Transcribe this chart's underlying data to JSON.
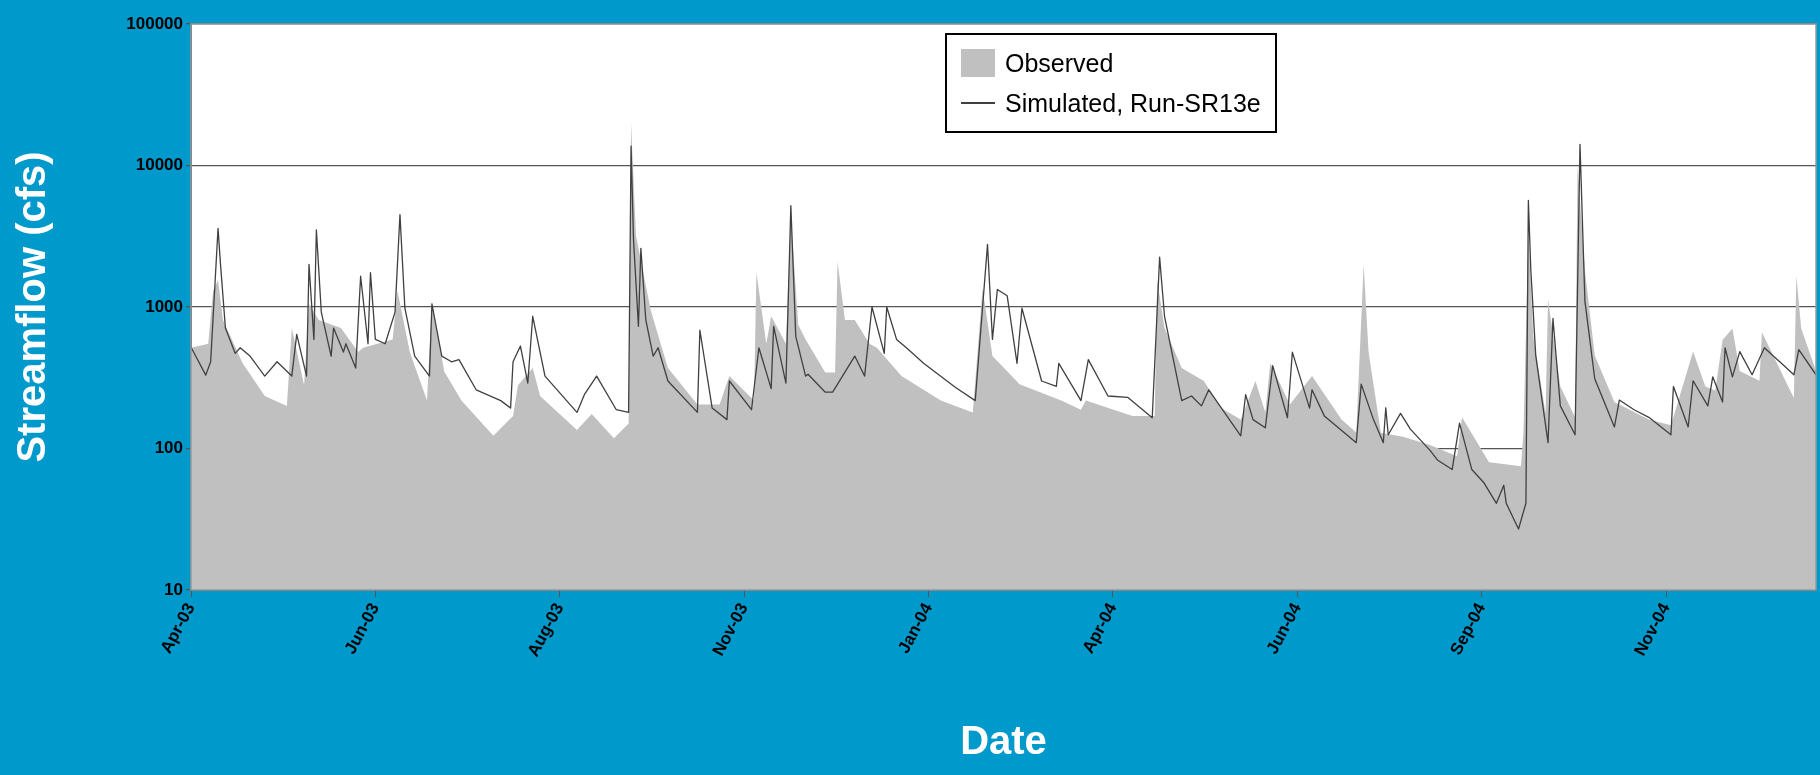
{
  "chart_data": {
    "type": "area",
    "xlabel": "Date",
    "ylabel": "Streamflow (cfs)",
    "xlim": [
      "2003-04-01",
      "2005-01-21"
    ],
    "xticks": [
      {
        "value": "2003-04-01",
        "label": "Apr-03"
      },
      {
        "value": "2003-06-15",
        "label": "Jun-03"
      },
      {
        "value": "2003-08-29",
        "label": "Aug-03"
      },
      {
        "value": "2003-11-12",
        "label": "Nov-03"
      },
      {
        "value": "2004-01-26",
        "label": "Jan-04"
      },
      {
        "value": "2004-04-10",
        "label": "Apr-04"
      },
      {
        "value": "2004-06-24",
        "label": "Jun-04"
      },
      {
        "value": "2004-09-07",
        "label": "Sep-04"
      },
      {
        "value": "2004-11-21",
        "label": "Nov-04"
      }
    ],
    "ylim": [
      10,
      100000
    ],
    "yticks": [
      10,
      100,
      1000,
      10000,
      100000
    ],
    "log": "y",
    "grid": "y",
    "legend": "top",
    "series": [
      {
        "name": "Observed",
        "type": "area",
        "color": "#c0c0c0",
        "x": [
          "2003-04-01",
          "2003-04-08",
          "2003-04-10",
          "2003-04-12",
          "2003-04-14",
          "2003-04-22",
          "2003-05-01",
          "2003-05-10",
          "2003-05-12",
          "2003-05-17",
          "2003-05-19",
          "2003-05-23",
          "2003-06-01",
          "2003-06-08",
          "2003-06-10",
          "2003-06-22",
          "2003-06-24",
          "2003-06-29",
          "2003-07-06",
          "2003-07-08",
          "2003-07-13",
          "2003-07-20",
          "2003-08-02",
          "2003-08-10",
          "2003-08-12",
          "2003-08-18",
          "2003-08-21",
          "2003-09-05",
          "2003-09-11",
          "2003-09-20",
          "2003-09-26",
          "2003-09-27",
          "2003-09-29",
          "2003-10-05",
          "2003-10-12",
          "2003-10-24",
          "2003-11-02",
          "2003-11-06",
          "2003-11-16",
          "2003-11-17",
          "2003-11-21",
          "2003-11-23",
          "2003-11-29",
          "2003-12-01",
          "2003-12-04",
          "2003-12-07",
          "2003-12-15",
          "2003-12-19",
          "2003-12-20",
          "2003-12-23",
          "2003-12-27",
          "2004-01-02",
          "2004-01-05",
          "2004-01-15",
          "2004-01-31",
          "2004-02-13",
          "2004-02-17",
          "2004-02-21",
          "2004-03-03",
          "2004-03-20",
          "2004-03-28",
          "2004-03-30",
          "2004-04-18",
          "2004-04-27",
          "2004-04-28",
          "2004-05-01",
          "2004-05-08",
          "2004-05-17",
          "2004-05-24",
          "2004-06-01",
          "2004-06-07",
          "2004-06-11",
          "2004-06-13",
          "2004-06-21",
          "2004-06-30",
          "2004-07-12",
          "2004-07-18",
          "2004-07-21",
          "2004-07-23",
          "2004-07-28",
          "2004-08-06",
          "2004-08-17",
          "2004-08-28",
          "2004-08-30",
          "2004-09-10",
          "2004-09-23",
          "2004-09-24",
          "2004-09-26",
          "2004-09-28",
          "2004-10-03",
          "2004-10-04",
          "2004-10-09",
          "2004-10-15",
          "2004-10-16",
          "2004-10-19",
          "2004-10-23",
          "2004-10-31",
          "2004-11-14",
          "2004-11-23",
          "2004-12-02",
          "2004-12-07",
          "2004-12-11",
          "2004-12-14",
          "2004-12-18",
          "2004-12-21",
          "2004-12-29",
          "2004-12-30",
          "2005-01-12",
          "2005-01-13",
          "2005-01-15",
          "2005-01-21"
        ],
        "values": [
          515,
          550,
          1300,
          1550,
          810,
          400,
          235,
          200,
          710,
          280,
          1050,
          810,
          710,
          480,
          515,
          590,
          1300,
          480,
          218,
          1100,
          350,
          218,
          123,
          170,
          280,
          370,
          235,
          135,
          175,
          118,
          150,
          20000,
          3200,
          950,
          370,
          205,
          205,
          325,
          218,
          1750,
          550,
          860,
          550,
          4400,
          750,
          590,
          345,
          345,
          2100,
          810,
          810,
          550,
          515,
          325,
          218,
          180,
          1350,
          450,
          285,
          218,
          188,
          218,
          170,
          170,
          1550,
          710,
          370,
          300,
          193,
          160,
          300,
          180,
          400,
          205,
          325,
          160,
          130,
          2000,
          480,
          129,
          121,
          106,
          88,
          166,
          80,
          75,
          129,
          3300,
          620,
          177,
          1130,
          274,
          166,
          10000,
          1820,
          455,
          213,
          160,
          146,
          484,
          274,
          257,
          585,
          706,
          353,
          301,
          663,
          227,
          1660,
          706,
          353
        ]
      },
      {
        "name": "Simulated,  Run-SR13e",
        "type": "line",
        "color": "#404040",
        "x": [
          "2003-04-01",
          "2003-04-07",
          "2003-04-09",
          "2003-04-12",
          "2003-04-13",
          "2003-04-15",
          "2003-04-19",
          "2003-04-21",
          "2003-04-25",
          "2003-05-01",
          "2003-05-06",
          "2003-05-12",
          "2003-05-14",
          "2003-05-18",
          "2003-05-19",
          "2003-05-21",
          "2003-05-22",
          "2003-05-24",
          "2003-05-28",
          "2003-05-29",
          "2003-06-02",
          "2003-06-03",
          "2003-06-07",
          "2003-06-09",
          "2003-06-12",
          "2003-06-13",
          "2003-06-15",
          "2003-06-19",
          "2003-06-23",
          "2003-06-25",
          "2003-06-27",
          "2003-07-01",
          "2003-07-07",
          "2003-07-08",
          "2003-07-12",
          "2003-07-16",
          "2003-07-19",
          "2003-07-26",
          "2003-08-05",
          "2003-08-09",
          "2003-08-10",
          "2003-08-13",
          "2003-08-16",
          "2003-08-18",
          "2003-08-23",
          "2003-09-05",
          "2003-09-08",
          "2003-09-13",
          "2003-09-21",
          "2003-09-26",
          "2003-09-27",
          "2003-09-28",
          "2003-09-30",
          "2003-10-01",
          "2003-10-03",
          "2003-10-06",
          "2003-10-08",
          "2003-10-12",
          "2003-10-24",
          "2003-10-25",
          "2003-10-30",
          "2003-11-05",
          "2003-11-06",
          "2003-11-15",
          "2003-11-18",
          "2003-11-23",
          "2003-11-24",
          "2003-11-29",
          "2003-12-01",
          "2003-12-03",
          "2003-12-07",
          "2003-12-08",
          "2003-12-15",
          "2003-12-18",
          "2003-12-27",
          "2003-12-31",
          "2004-01-03",
          "2004-01-08",
          "2004-01-09",
          "2004-01-13",
          "2004-01-17",
          "2004-01-24",
          "2004-02-06",
          "2004-02-14",
          "2004-02-19",
          "2004-02-21",
          "2004-02-23",
          "2004-02-27",
          "2004-03-02",
          "2004-03-04",
          "2004-03-12",
          "2004-03-18",
          "2004-03-19",
          "2004-03-28",
          "2004-03-31",
          "2004-04-08",
          "2004-04-16",
          "2004-04-26",
          "2004-04-29",
          "2004-05-01",
          "2004-05-08",
          "2004-05-12",
          "2004-05-16",
          "2004-05-19",
          "2004-06-01",
          "2004-06-03",
          "2004-06-06",
          "2004-06-11",
          "2004-06-14",
          "2004-06-20",
          "2004-06-22",
          "2004-06-29",
          "2004-06-30",
          "2004-07-05",
          "2004-07-18",
          "2004-07-20",
          "2004-07-25",
          "2004-07-29",
          "2004-07-30",
          "2004-07-31",
          "2004-08-05",
          "2004-08-09",
          "2004-08-17",
          "2004-08-20",
          "2004-08-26",
          "2004-08-29",
          "2004-09-03",
          "2004-09-08",
          "2004-09-13",
          "2004-09-16",
          "2004-09-17",
          "2004-09-22",
          "2004-09-25",
          "2004-09-26",
          "2004-09-27",
          "2004-09-29",
          "2004-10-04",
          "2004-10-06",
          "2004-10-09",
          "2004-10-15",
          "2004-10-17",
          "2004-10-19",
          "2004-10-23",
          "2004-10-31",
          "2004-11-02",
          "2004-11-08",
          "2004-11-14",
          "2004-11-23",
          "2004-11-24",
          "2004-11-30",
          "2004-12-02",
          "2004-12-08",
          "2004-12-10",
          "2004-12-14",
          "2004-12-15",
          "2004-12-18",
          "2004-12-21",
          "2004-12-26",
          "2004-12-31",
          "2005-01-12",
          "2005-01-14",
          "2005-01-21"
        ],
        "values": [
          520,
          330,
          410,
          3600,
          2000,
          710,
          470,
          515,
          450,
          325,
          410,
          325,
          640,
          325,
          2000,
          590,
          3500,
          920,
          450,
          710,
          480,
          550,
          370,
          1650,
          550,
          1750,
          590,
          550,
          920,
          4500,
          980,
          450,
          325,
          1050,
          450,
          410,
          425,
          260,
          218,
          193,
          410,
          530,
          290,
          860,
          325,
          180,
          240,
          325,
          188,
          180,
          13700,
          3000,
          730,
          2600,
          810,
          450,
          515,
          300,
          180,
          685,
          193,
          160,
          300,
          188,
          515,
          265,
          730,
          290,
          5200,
          620,
          325,
          335,
          250,
          250,
          450,
          325,
          1000,
          470,
          1000,
          590,
          515,
          400,
          270,
          218,
          2770,
          590,
          1330,
          1200,
          400,
          980,
          300,
          275,
          400,
          218,
          425,
          235,
          230,
          165,
          2250,
          860,
          218,
          235,
          200,
          260,
          123,
          240,
          160,
          140,
          385,
          165,
          480,
          193,
          260,
          170,
          110,
          285,
          160,
          110,
          194,
          125,
          177,
          137,
          97,
          83,
          71,
          151,
          71,
          57,
          41,
          55,
          41,
          27,
          41,
          5660,
          1820,
          455,
          110,
          830,
          200,
          125,
          14100,
          1100,
          311,
          142,
          220,
          188,
          166,
          125,
          274,
          142,
          301,
          200,
          321,
          213,
          515,
          321,
          484,
          332,
          515,
          332,
          500,
          332
        ]
      }
    ]
  }
}
